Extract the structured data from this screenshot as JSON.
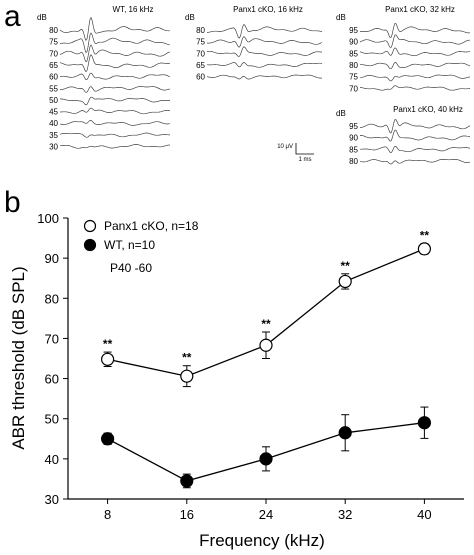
{
  "chart_data": [
    {
      "type": "line",
      "panel_label": "a",
      "description_kind": "ABR waveforms (dB levels)",
      "unit_label": "dB",
      "scale_bar": {
        "amplitude": "10 μV",
        "time": "1 ms"
      },
      "groups": [
        {
          "title": "WT, 16 kHz",
          "levels": [
            80,
            75,
            70,
            65,
            60,
            55,
            50,
            45,
            40,
            35,
            30
          ]
        },
        {
          "title": "Panx1 cKO, 16 kHz",
          "levels": [
            80,
            75,
            70,
            65,
            60
          ]
        },
        {
          "title": "Panx1 cKO, 32 kHz",
          "levels": [
            95,
            90,
            85,
            80,
            75,
            70
          ]
        },
        {
          "title": "Panx1 cKO, 40 kHz",
          "levels": [
            95,
            90,
            85,
            80
          ]
        }
      ]
    },
    {
      "type": "line",
      "panel_label": "b",
      "title": "",
      "xlabel": "Frequency (kHz)",
      "ylabel": "ABR threshold (dB SPL)",
      "annotation": "P40 -60",
      "x": [
        8,
        16,
        24,
        32,
        40
      ],
      "xticks": [
        8,
        16,
        24,
        32,
        40
      ],
      "ylim": [
        30,
        100
      ],
      "yticks": [
        30,
        40,
        50,
        60,
        70,
        80,
        90,
        100
      ],
      "grid": false,
      "legend_position": "top-left",
      "series": [
        {
          "name": "Panx1 cKO, n=18",
          "marker": "open-circle",
          "values": [
            64.8,
            60.6,
            68.3,
            84.2,
            92.3
          ],
          "errors": [
            1.8,
            2.6,
            3.3,
            1.9,
            1.3
          ],
          "significance": [
            "**",
            "**",
            "**",
            "**",
            "**"
          ]
        },
        {
          "name": "WT, n=10",
          "marker": "filled-circle",
          "values": [
            45.0,
            34.5,
            40.0,
            46.5,
            49.0
          ],
          "errors": [
            1.4,
            1.7,
            3.0,
            4.5,
            3.9
          ]
        }
      ]
    }
  ]
}
